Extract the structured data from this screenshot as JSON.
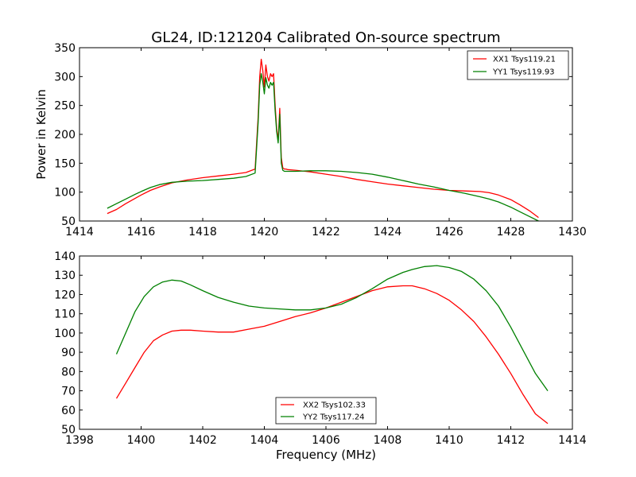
{
  "figure_title": "GL24, ID:121204 Calibrated On-source spectrum",
  "colors": {
    "xx": "#ff0000",
    "yy": "#008000",
    "axis": "#000000",
    "background": "#ffffff"
  },
  "chart_data": [
    {
      "type": "line",
      "title": "GL24, ID:121204 Calibrated On-source spectrum",
      "xlabel": "",
      "ylabel": "Power in Kelvin",
      "xlim": [
        1414,
        1430
      ],
      "ylim": [
        50,
        350
      ],
      "xticks": [
        1414,
        1416,
        1418,
        1420,
        1422,
        1424,
        1426,
        1428,
        1430
      ],
      "yticks": [
        50,
        100,
        150,
        200,
        250,
        300,
        350
      ],
      "legend_position": "top-right",
      "grid": false,
      "series": [
        {
          "name": "XX1 Tsys119.21",
          "color": "#ff0000",
          "x": [
            1414.9,
            1415.2,
            1415.5,
            1415.8,
            1416.0,
            1416.3,
            1416.6,
            1417.0,
            1417.5,
            1418.0,
            1418.5,
            1419.0,
            1419.4,
            1419.7,
            1419.8,
            1419.85,
            1419.9,
            1419.95,
            1420.0,
            1420.05,
            1420.1,
            1420.15,
            1420.2,
            1420.25,
            1420.3,
            1420.35,
            1420.4,
            1420.45,
            1420.5,
            1420.55,
            1420.6,
            1420.65,
            1420.7,
            1420.75,
            1421.0,
            1421.5,
            1422.0,
            1422.5,
            1423.0,
            1423.5,
            1424.0,
            1424.5,
            1425.0,
            1425.5,
            1426.0,
            1426.5,
            1427.0,
            1427.3,
            1427.6,
            1428.0,
            1428.3,
            1428.6,
            1428.9
          ],
          "y": [
            63,
            70,
            80,
            89,
            95,
            103,
            109,
            116,
            121,
            125,
            128,
            131,
            134,
            140,
            230,
            300,
            330,
            310,
            282,
            320,
            300,
            292,
            305,
            300,
            305,
            250,
            210,
            190,
            245,
            160,
            142,
            140,
            140,
            139,
            138,
            135,
            131,
            127,
            122,
            118,
            114,
            111,
            108,
            105,
            103,
            102,
            101,
            99,
            95,
            87,
            78,
            68,
            56
          ]
        },
        {
          "name": "YY1 Tsys119.93",
          "color": "#008000",
          "x": [
            1414.9,
            1415.2,
            1415.5,
            1415.8,
            1416.0,
            1416.3,
            1416.6,
            1417.0,
            1417.5,
            1418.0,
            1418.5,
            1419.0,
            1419.4,
            1419.7,
            1419.8,
            1419.85,
            1419.9,
            1419.95,
            1420.0,
            1420.05,
            1420.1,
            1420.15,
            1420.2,
            1420.25,
            1420.3,
            1420.35,
            1420.4,
            1420.45,
            1420.5,
            1420.55,
            1420.6,
            1420.65,
            1420.7,
            1420.75,
            1421.0,
            1421.5,
            1422.0,
            1422.5,
            1423.0,
            1423.5,
            1424.0,
            1424.5,
            1425.0,
            1425.5,
            1426.0,
            1426.5,
            1427.0,
            1427.3,
            1427.6,
            1428.0,
            1428.3,
            1428.6,
            1428.9
          ],
          "y": [
            72,
            80,
            88,
            96,
            101,
            108,
            113,
            117,
            119,
            120,
            122,
            124,
            127,
            133,
            220,
            285,
            305,
            290,
            270,
            298,
            285,
            280,
            290,
            285,
            290,
            240,
            205,
            185,
            235,
            150,
            138,
            136,
            136,
            136,
            136,
            137,
            137,
            136,
            134,
            131,
            126,
            120,
            114,
            109,
            103,
            98,
            92,
            88,
            83,
            74,
            66,
            58,
            50
          ]
        }
      ]
    },
    {
      "type": "line",
      "title": "",
      "xlabel": "Frequency (MHz)",
      "ylabel": "",
      "xlim": [
        1398,
        1414
      ],
      "ylim": [
        50,
        140
      ],
      "xticks": [
        1398,
        1400,
        1402,
        1404,
        1406,
        1408,
        1410,
        1412,
        1414
      ],
      "yticks": [
        50,
        60,
        70,
        80,
        90,
        100,
        110,
        120,
        130,
        140
      ],
      "legend_position": "bottom-center",
      "grid": false,
      "series": [
        {
          "name": "XX2 Tsys102.33",
          "color": "#ff0000",
          "x": [
            1399.2,
            1399.5,
            1399.8,
            1400.1,
            1400.4,
            1400.7,
            1401.0,
            1401.3,
            1401.6,
            1402.0,
            1402.5,
            1403.0,
            1403.5,
            1404.0,
            1404.5,
            1405.0,
            1405.5,
            1406.0,
            1406.5,
            1407.0,
            1407.5,
            1408.0,
            1408.5,
            1408.8,
            1409.2,
            1409.6,
            1410.0,
            1410.4,
            1410.8,
            1411.2,
            1411.6,
            1412.0,
            1412.4,
            1412.8,
            1413.2
          ],
          "y": [
            66,
            74,
            82,
            90,
            96,
            99,
            101,
            101.5,
            101.5,
            101,
            100.5,
            100.5,
            102,
            103.5,
            106,
            108.5,
            110.5,
            113,
            116,
            119,
            122,
            124,
            124.5,
            124.5,
            123,
            120.5,
            117,
            112,
            106,
            98,
            89,
            79,
            68,
            58,
            53
          ]
        },
        {
          "name": "YY2 Tsys117.24",
          "color": "#008000",
          "x": [
            1399.2,
            1399.5,
            1399.8,
            1400.1,
            1400.4,
            1400.7,
            1401.0,
            1401.3,
            1401.6,
            1402.0,
            1402.5,
            1403.0,
            1403.5,
            1404.0,
            1404.5,
            1405.0,
            1405.5,
            1406.0,
            1406.5,
            1407.0,
            1407.5,
            1408.0,
            1408.5,
            1408.8,
            1409.2,
            1409.6,
            1410.0,
            1410.4,
            1410.8,
            1411.2,
            1411.6,
            1412.0,
            1412.4,
            1412.8,
            1413.2
          ],
          "y": [
            89,
            100,
            111,
            119,
            124,
            126.5,
            127.5,
            127,
            125,
            122,
            118.5,
            116,
            114,
            113,
            112.5,
            112,
            112,
            113,
            115,
            118.5,
            123,
            128,
            131.5,
            133,
            134.5,
            135,
            134,
            132,
            128,
            122,
            114,
            103,
            91,
            79,
            70
          ]
        }
      ]
    }
  ]
}
